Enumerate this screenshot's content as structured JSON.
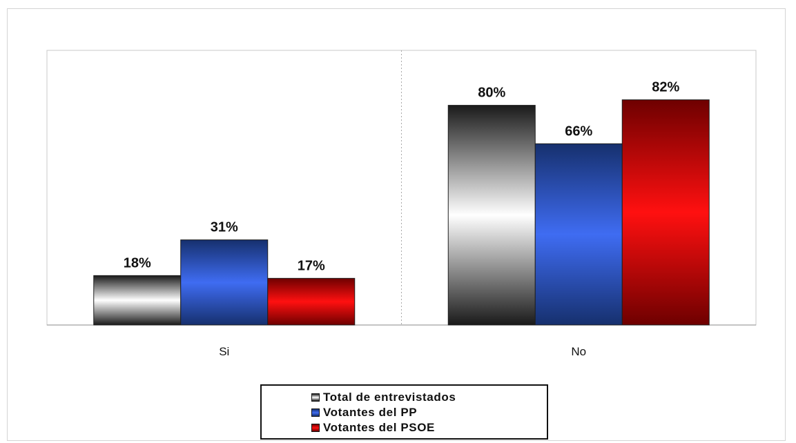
{
  "chart_data": {
    "type": "bar",
    "categories": [
      "Si",
      "No"
    ],
    "series": [
      {
        "name": "Total de entrevistados",
        "values": [
          18,
          80
        ],
        "labels": [
          "18%",
          "80%"
        ]
      },
      {
        "name": "Votantes del PP",
        "values": [
          31,
          66
        ],
        "labels": [
          "31%",
          "66%"
        ]
      },
      {
        "name": "Votantes del PSOE",
        "values": [
          17,
          82
        ],
        "labels": [
          "17%",
          "82%"
        ]
      }
    ],
    "ylim": [
      0,
      100
    ],
    "grid": true,
    "legend_placement": "bottom-center",
    "colors": {
      "Total de entrevistados": [
        "#1a1a1a",
        "#ffffff"
      ],
      "Votantes del PP": [
        "#16306e",
        "#3f6cf2"
      ],
      "Votantes del PSOE": [
        "#6e0000",
        "#ff1010"
      ]
    }
  }
}
